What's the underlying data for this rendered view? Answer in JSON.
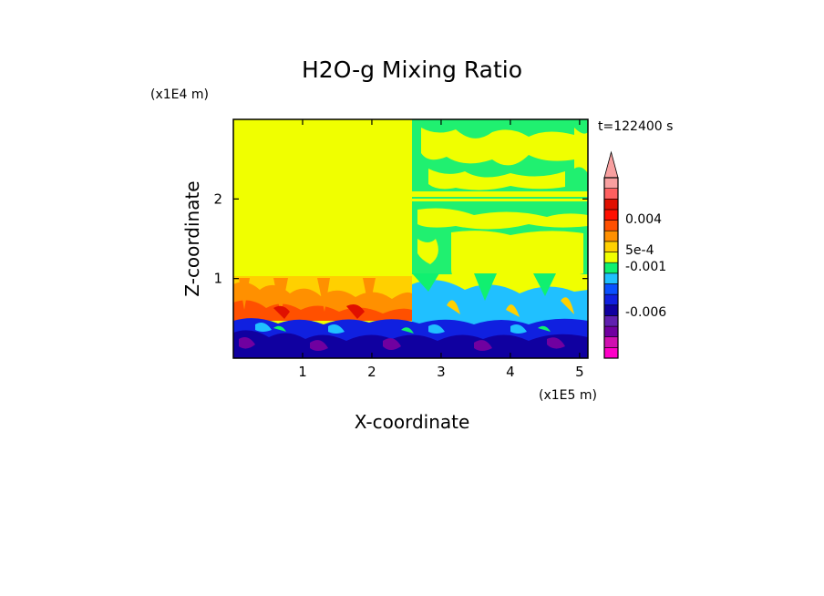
{
  "chart_data": {
    "type": "heatmap",
    "title": "H2O-g Mixing Ratio",
    "xlabel": "X-coordinate",
    "ylabel": "Z-coordinate",
    "x_unit": "(x1E5 m)",
    "y_unit": "(x1E4 m)",
    "time_label": "t=122400 s",
    "x_ticks": [
      "1",
      "2",
      "3",
      "4",
      "5"
    ],
    "y_ticks": [
      "1",
      "2"
    ],
    "xlim": [
      0,
      5.12
    ],
    "ylim": [
      0,
      3.0
    ],
    "colorbar": {
      "tick_labels": [
        "0.004",
        "5e-4",
        "-0.001",
        "-0.006"
      ],
      "tick_values": [
        0.004,
        0.0005,
        -0.001,
        -0.006
      ],
      "color_levels": [
        "#ff00c8",
        "#d010b0",
        "#7000a0",
        "#6020b0",
        "#1000a0",
        "#1020e0",
        "#0a50ff",
        "#20c0ff",
        "#10f070",
        "#f0ff00",
        "#ffd000",
        "#ff9000",
        "#ff5000",
        "#ff1000",
        "#e01000",
        "#ff6060",
        "#f8a0a0"
      ]
    },
    "regions": [
      {
        "x": [
          0,
          2.55
        ],
        "z": [
          1.05,
          3.0
        ],
        "level": "5e-4"
      },
      {
        "x": [
          2.55,
          5.12
        ],
        "z": [
          1.0,
          3.0
        ],
        "level": "mixed 5e-4 / 0"
      },
      {
        "x": [
          0,
          2.55
        ],
        "z": [
          0.5,
          1.05
        ],
        "level": "0.004"
      },
      {
        "x": [
          0,
          5.12
        ],
        "z": [
          0,
          0.55
        ],
        "level": "-0.006"
      }
    ]
  }
}
